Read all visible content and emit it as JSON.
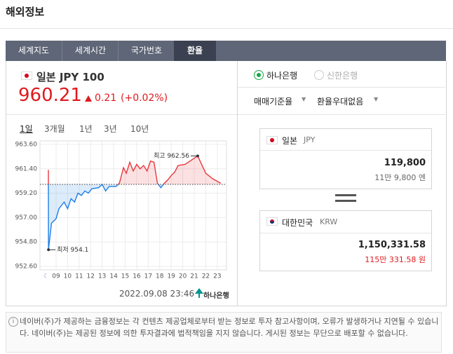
{
  "header": {
    "title": "해외정보"
  },
  "tabs": [
    "세계지도",
    "세계시간",
    "국가번호",
    "환율"
  ],
  "currency": {
    "name": "일본 JPY 100",
    "rate": "960.21",
    "change": "0.21",
    "change_pct": "(+0.02%)"
  },
  "banks": [
    "하나은행",
    "신한은행"
  ],
  "options": [
    "매매기준율",
    "환율우대없음"
  ],
  "converter": {
    "from": {
      "country": "일본",
      "code": "JPY",
      "amount": "119,800",
      "reading": "11만 9,800 엔"
    },
    "to": {
      "country": "대한민국",
      "code": "KRW",
      "amount": "1,150,331.58",
      "reading": "115만 331.58 원"
    }
  },
  "periods": [
    "1일",
    "3개월",
    "1년",
    "3년",
    "10년"
  ],
  "timestamp": "2022.09.08 23:46",
  "source": "하나은행",
  "chart_data": {
    "type": "line",
    "x": [
      8.33,
      8.34,
      8.6,
      9.0,
      9.25,
      9.7,
      10.0,
      10.3,
      10.6,
      10.9,
      11.2,
      11.5,
      11.8,
      12.1,
      12.7,
      13.0,
      13.3,
      13.6,
      14.2,
      14.5,
      14.85,
      15.1,
      15.4,
      15.7,
      16.0,
      16.3,
      16.6,
      16.9,
      17.2,
      17.5,
      17.8,
      18.1,
      18.4,
      18.7,
      19.0,
      19.3,
      19.6,
      20.2,
      21.3,
      22.0,
      22.6,
      23.3
    ],
    "values": [
      961.3,
      954.1,
      956.5,
      956.9,
      957.8,
      958.4,
      957.8,
      958.7,
      958.4,
      959.2,
      959.0,
      959.4,
      959.2,
      959.6,
      959.7,
      960.0,
      959.4,
      959.8,
      959.8,
      960.1,
      961.5,
      961.0,
      962.0,
      961.2,
      961.8,
      961.4,
      961.7,
      961.2,
      962.1,
      962.0,
      960.1,
      959.7,
      960.1,
      960.4,
      960.8,
      961.1,
      961.7,
      961.8,
      962.56,
      961.0,
      960.5,
      960.1
    ],
    "base": 960,
    "color_up": "#e8383d",
    "color_down": "#1e7fe6",
    "xlim": [
      7.6,
      23.8
    ],
    "xticks": [
      {
        "value": 9,
        "label": "09"
      },
      10,
      11,
      12,
      13,
      14,
      15,
      16,
      17,
      18,
      19,
      20,
      21,
      22,
      23
    ],
    "ylim": [
      952.6,
      963.6
    ],
    "yticks": [
      {
        "value": 963.6,
        "label": "963.60"
      },
      {
        "value": 961.4,
        "label": "961.40"
      },
      {
        "value": 959.2,
        "label": "959.20"
      },
      {
        "value": 957.0,
        "label": "957.00"
      },
      {
        "value": 954.8,
        "label": "954.80"
      },
      {
        "value": 952.6,
        "label": "952.60"
      }
    ],
    "grid": true,
    "annotations": [
      {
        "text": "최고 962.56",
        "x": 21.3,
        "y": 962.56
      },
      {
        "text": "최저 954.1",
        "x": 8.34,
        "y": 954.1
      }
    ]
  },
  "disclaimer": "네이버(주)가 제공하는 금융정보는 각 컨텐츠 제공업체로부터 받는 정보로 투자 참고사항이며, 오류가 발생하거나 지연될 수 있습니다. 네이버(주)는 제공된 정보에 의한 투자결과에 법적책임을 지지 않습니다. 게시된 정보는 무단으로 배포할 수 없습니다."
}
